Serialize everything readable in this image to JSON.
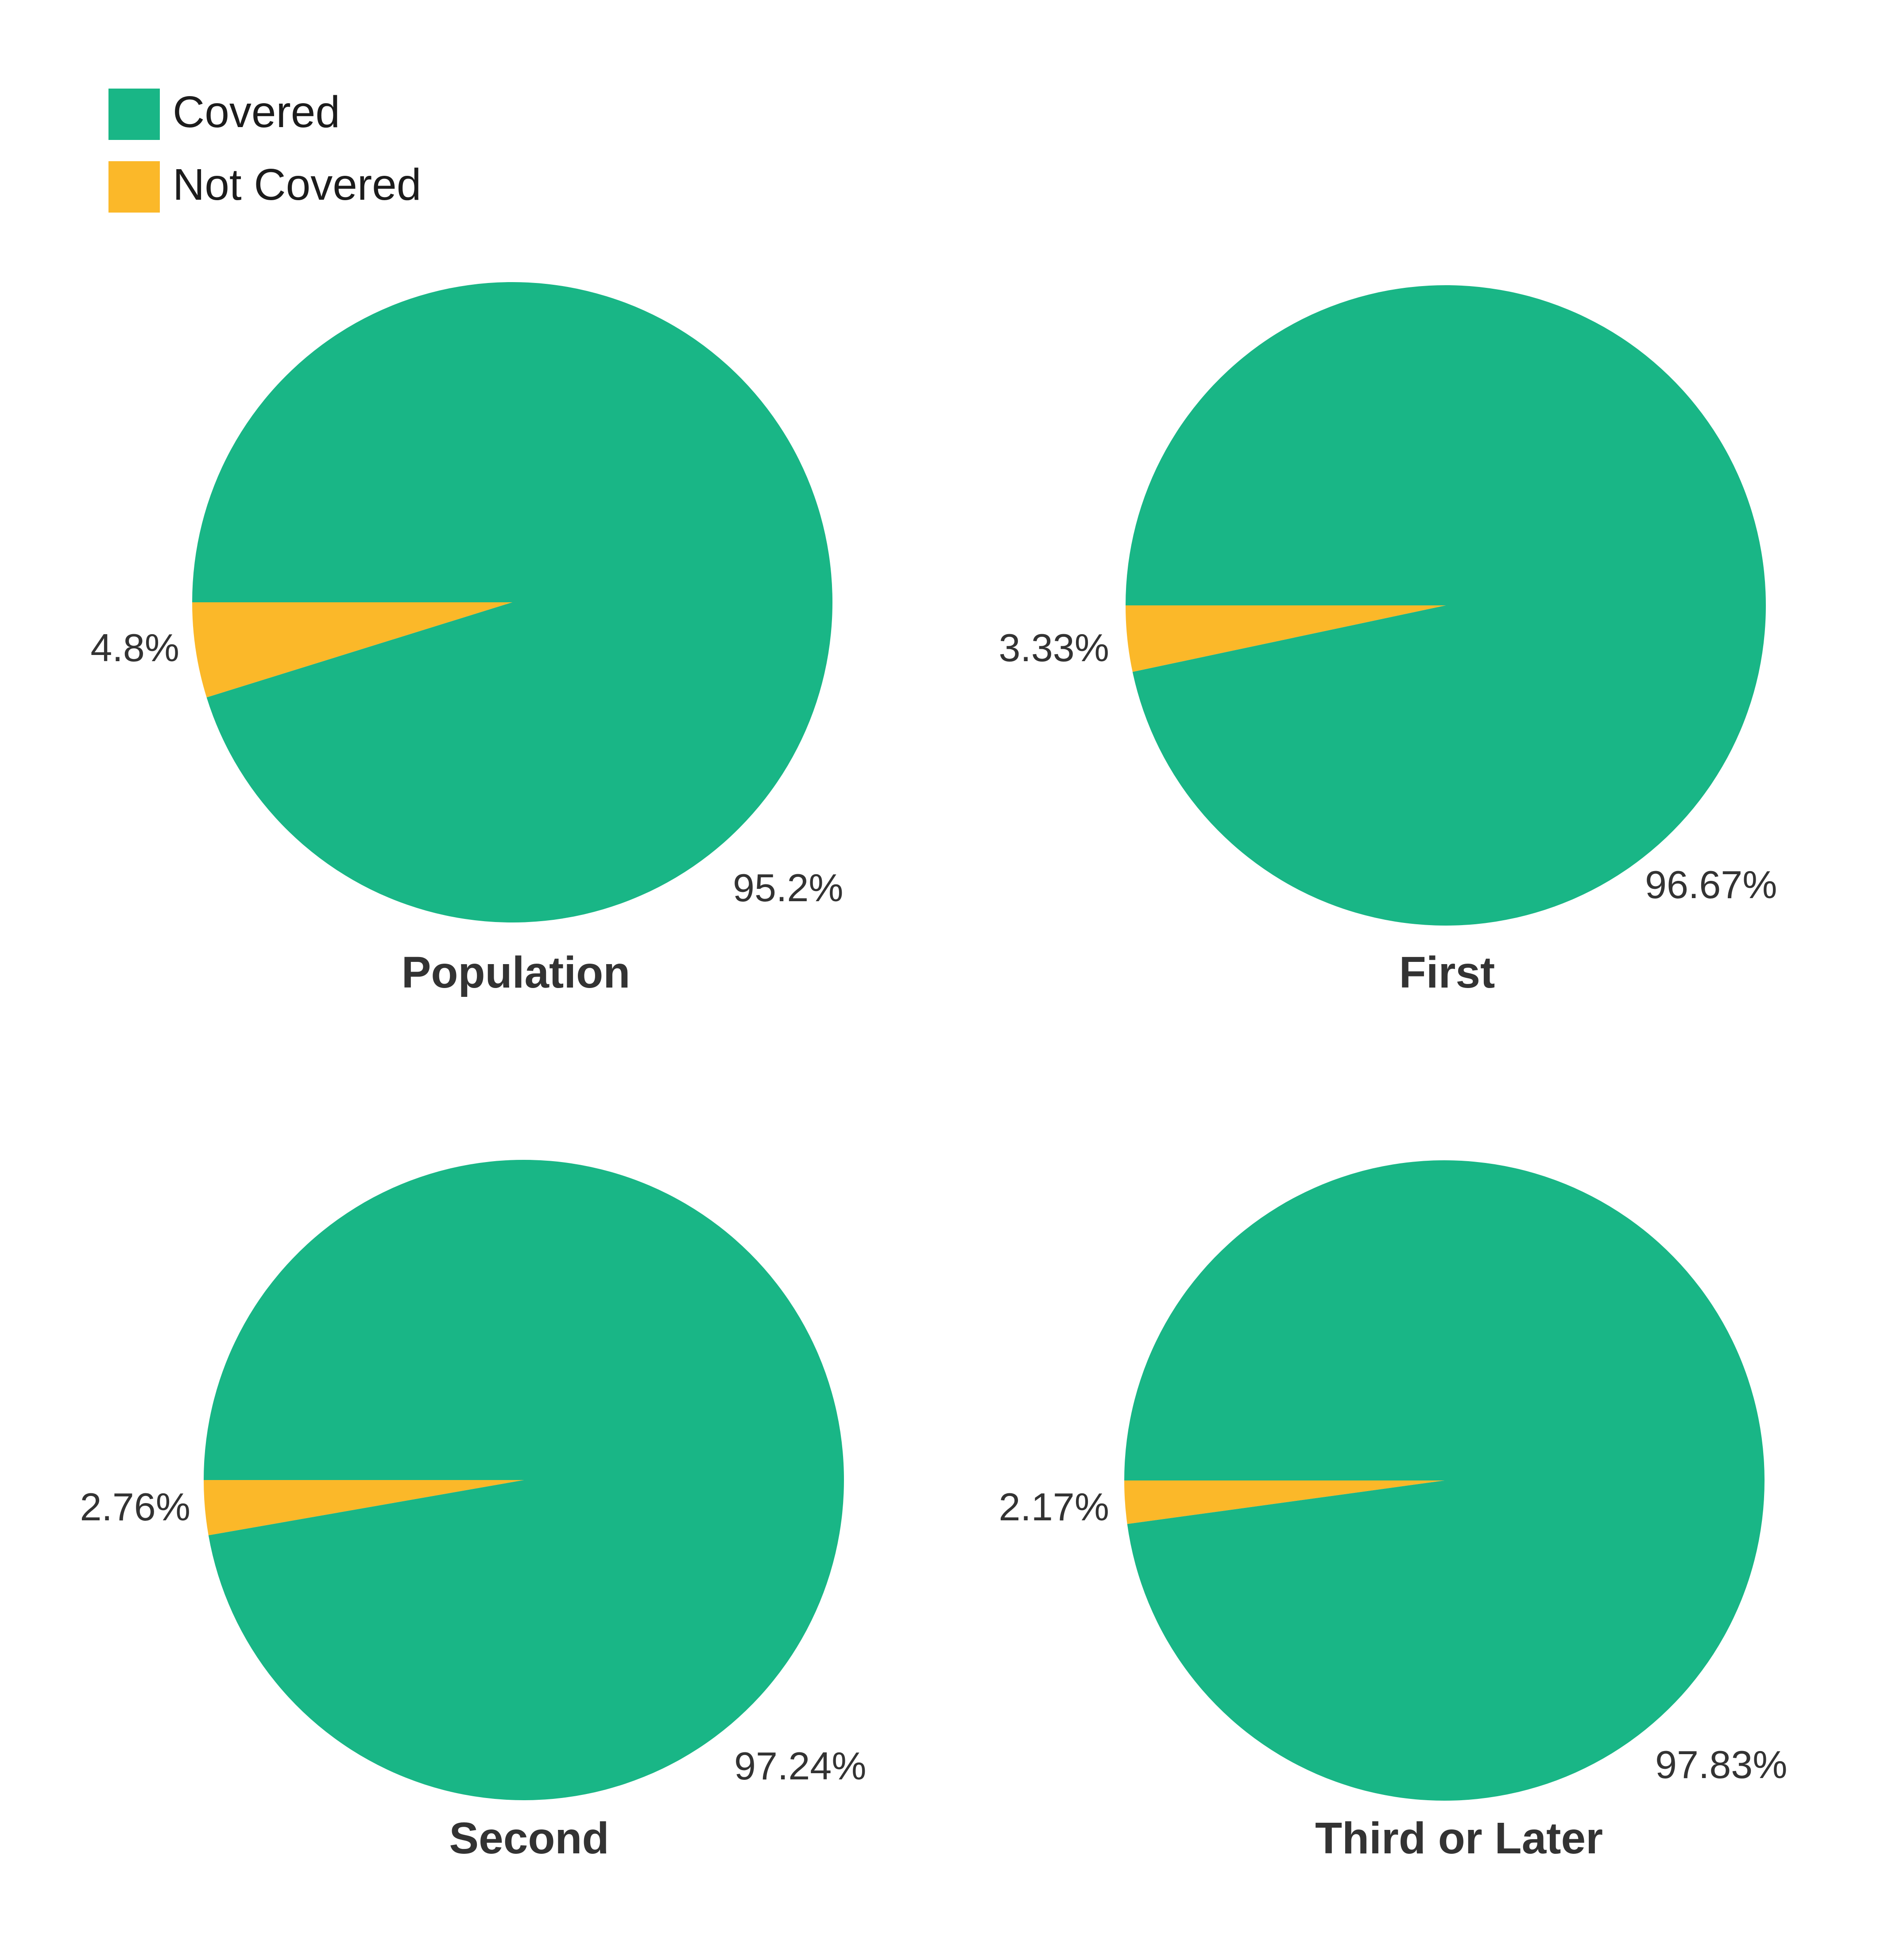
{
  "colors": {
    "covered": "#19b686",
    "not_covered": "#fbb829"
  },
  "legend": {
    "items": [
      {
        "label": "Covered",
        "color": "#19b686"
      },
      {
        "label": "Not Covered",
        "color": "#fbb829"
      }
    ]
  },
  "chart_data": [
    {
      "type": "pie",
      "title": "Population",
      "slices": [
        {
          "label": "Covered",
          "value": 95.2,
          "text": "95.2%",
          "color": "#19b686"
        },
        {
          "label": "Not Covered",
          "value": 4.8,
          "text": "4.8%",
          "color": "#fbb829"
        }
      ]
    },
    {
      "type": "pie",
      "title": "First",
      "slices": [
        {
          "label": "Covered",
          "value": 96.67,
          "text": "96.67%",
          "color": "#19b686"
        },
        {
          "label": "Not Covered",
          "value": 3.33,
          "text": "3.33%",
          "color": "#fbb829"
        }
      ]
    },
    {
      "type": "pie",
      "title": "Second",
      "slices": [
        {
          "label": "Covered",
          "value": 97.24,
          "text": "97.24%",
          "color": "#19b686"
        },
        {
          "label": "Not Covered",
          "value": 2.76,
          "text": "2.76%",
          "color": "#fbb829"
        }
      ]
    },
    {
      "type": "pie",
      "title": "Third or Later",
      "slices": [
        {
          "label": "Covered",
          "value": 97.83,
          "text": "97.83%",
          "color": "#19b686"
        },
        {
          "label": "Not Covered",
          "value": 2.17,
          "text": "2.17%",
          "color": "#fbb829"
        }
      ]
    }
  ]
}
